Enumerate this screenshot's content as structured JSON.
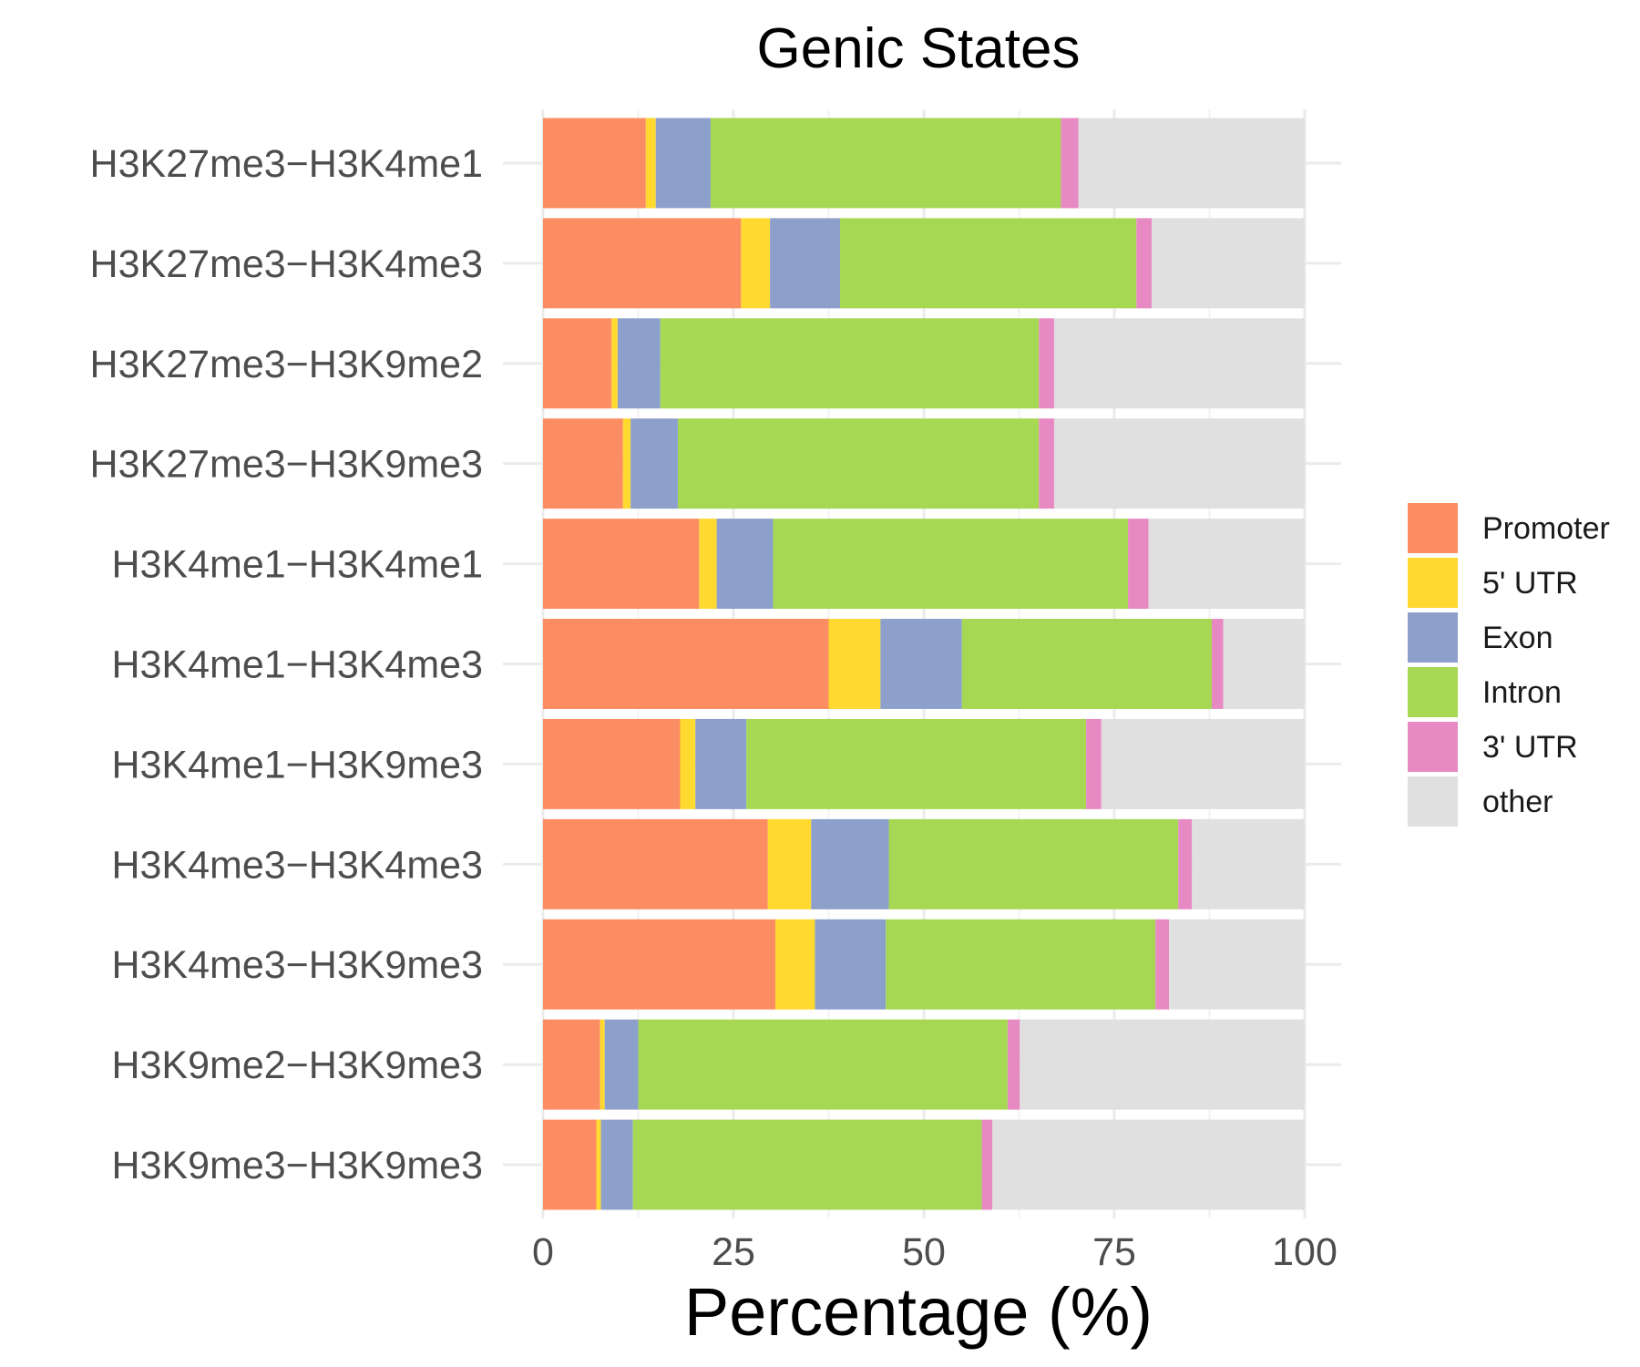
{
  "chart_data": {
    "type": "bar",
    "orientation": "horizontal",
    "stacked": true,
    "title": "Genic States",
    "xlabel": "Percentage (%)",
    "ylabel": "",
    "xlim": [
      0,
      100
    ],
    "xticks": [
      0,
      25,
      50,
      75,
      100
    ],
    "grid": true,
    "legend_position": "right",
    "categories": [
      "H3K27me3−H3K4me1",
      "H3K27me3−H3K4me3",
      "H3K27me3−H3K9me2",
      "H3K27me3−H3K9me3",
      "H3K4me1−H3K4me1",
      "H3K4me1−H3K4me3",
      "H3K4me1−H3K9me3",
      "H3K4me3−H3K4me3",
      "H3K4me3−H3K9me3",
      "H3K9me2−H3K9me3",
      "H3K9me3−H3K9me3"
    ],
    "series": [
      {
        "name": "Promoter",
        "color": "#FC8D62",
        "values": [
          13.5,
          26,
          9,
          10.5,
          20.5,
          37.5,
          18,
          29.5,
          30.5,
          7.5,
          7
        ]
      },
      {
        "name": "5' UTR",
        "color": "#FFD92F",
        "values": [
          1.3,
          3.8,
          0.8,
          1.0,
          2.3,
          6.8,
          2.0,
          5.7,
          5.2,
          0.6,
          0.6
        ]
      },
      {
        "name": "Exon",
        "color": "#8DA0CB",
        "values": [
          7.2,
          9.2,
          5.6,
          6.2,
          7.4,
          10.7,
          6.7,
          10.2,
          9.3,
          4.4,
          4.2
        ]
      },
      {
        "name": "Intron",
        "color": "#A6D854",
        "values": [
          46.0,
          38.9,
          49.7,
          47.4,
          46.6,
          32.8,
          44.6,
          38.0,
          35.4,
          48.5,
          45.8
        ]
      },
      {
        "name": "3' UTR",
        "color": "#E78AC3",
        "values": [
          2.3,
          2.0,
          2.0,
          2.0,
          2.7,
          1.5,
          2.0,
          1.8,
          1.8,
          1.6,
          1.4
        ]
      },
      {
        "name": "other",
        "color": "#E0E0E0",
        "values": [
          29.7,
          20.1,
          32.9,
          32.9,
          20.5,
          10.7,
          26.7,
          14.8,
          17.8,
          37.4,
          41.0
        ]
      }
    ]
  }
}
